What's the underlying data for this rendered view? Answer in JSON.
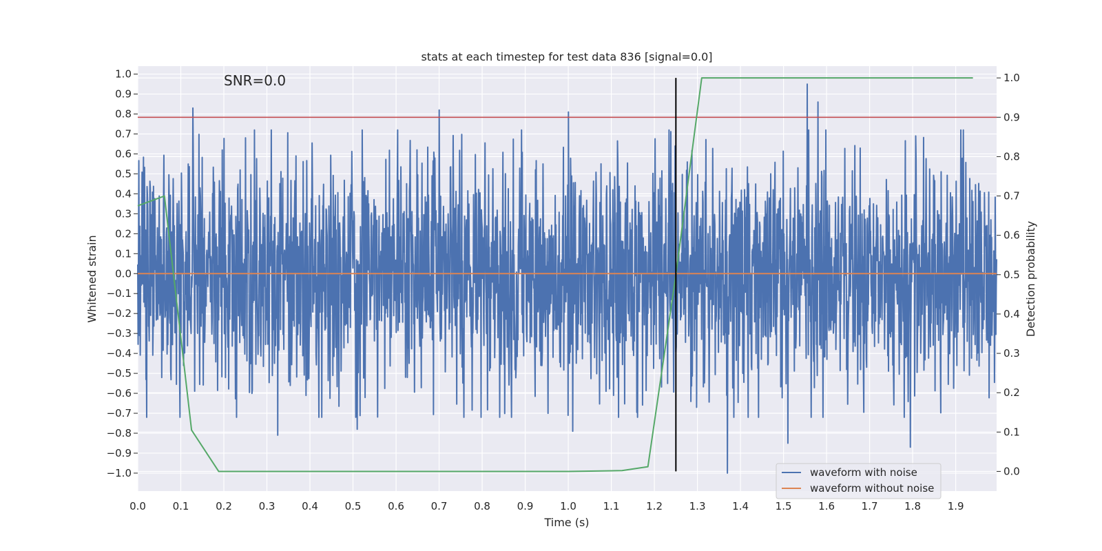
{
  "chart_data": {
    "type": "line",
    "title": "stats at each timestep for test data 836 [signal=0.0]",
    "annotation": "SNR=0.0",
    "xlabel": "Time (s)",
    "ylabel": "Whitened strain",
    "y2label": "Detection probability",
    "xlim": [
      0.0,
      1.995
    ],
    "ylim": [
      -1.09,
      1.04
    ],
    "y2lim": [
      -0.05,
      1.03
    ],
    "x_ticks": [
      "0.0",
      "0.1",
      "0.2",
      "0.3",
      "0.4",
      "0.5",
      "0.6",
      "0.7",
      "0.8",
      "0.9",
      "1.0",
      "1.1",
      "1.2",
      "1.3",
      "1.4",
      "1.5",
      "1.6",
      "1.7",
      "1.8",
      "1.9"
    ],
    "y_ticks": [
      "1.0",
      "0.9",
      "0.8",
      "0.7",
      "0.6",
      "0.5",
      "0.4",
      "0.3",
      "0.2",
      "0.1",
      "0.0",
      "-0.1",
      "-0.2",
      "-0.3",
      "-0.4",
      "-0.5",
      "-0.6",
      "-0.7",
      "-0.8",
      "-0.9",
      "-1.0"
    ],
    "y2_ticks": [
      "1.0",
      "0.9",
      "0.8",
      "0.7",
      "0.6",
      "0.5",
      "0.4",
      "0.3",
      "0.2",
      "0.1",
      "0.0"
    ],
    "grid": true,
    "legend_position": "bottom-right",
    "series": [
      {
        "name": "waveform with noise",
        "axis": "left",
        "color": "#4c72b0",
        "kind": "noise",
        "x_range": [
          0.0,
          1.995
        ],
        "typical_range": [
          -0.5,
          0.5
        ],
        "extremes": [
          {
            "x": 0.128,
            "y": 0.83
          },
          {
            "x": 0.7,
            "y": 0.82
          },
          {
            "x": 1.0,
            "y": 0.81
          },
          {
            "x": 1.37,
            "y": 0.92
          },
          {
            "x": 1.37,
            "y": -1.0
          },
          {
            "x": 1.555,
            "y": 0.95
          },
          {
            "x": 1.58,
            "y": 0.86
          },
          {
            "x": 1.51,
            "y": -0.85
          },
          {
            "x": 1.795,
            "y": -0.87
          },
          {
            "x": 0.325,
            "y": -0.81
          },
          {
            "x": 0.51,
            "y": -0.78
          },
          {
            "x": 1.01,
            "y": -0.79
          }
        ]
      },
      {
        "name": "waveform without noise",
        "axis": "left",
        "color": "#dd8452",
        "x": [
          0.0,
          1.995
        ],
        "y": [
          0.0,
          0.0
        ]
      },
      {
        "name": "",
        "axis": "right",
        "color": "#55a868",
        "x": [
          0.0,
          0.062,
          0.125,
          0.188,
          0.5,
          0.8,
          1.0,
          1.125,
          1.185,
          1.25,
          1.31,
          1.5,
          1.7,
          1.94
        ],
        "y": [
          0.675,
          0.7,
          0.105,
          0.0,
          0.0,
          0.0,
          0.0,
          0.002,
          0.012,
          0.5,
          1.0,
          1.0,
          1.0,
          1.0
        ]
      }
    ],
    "reference_lines": [
      {
        "orientation": "horizontal",
        "axis": "right",
        "value": 0.9,
        "color": "#c44e52"
      },
      {
        "orientation": "vertical",
        "value": 1.25,
        "y2_range": [
          0.0,
          1.0
        ],
        "color": "#000000"
      }
    ]
  }
}
